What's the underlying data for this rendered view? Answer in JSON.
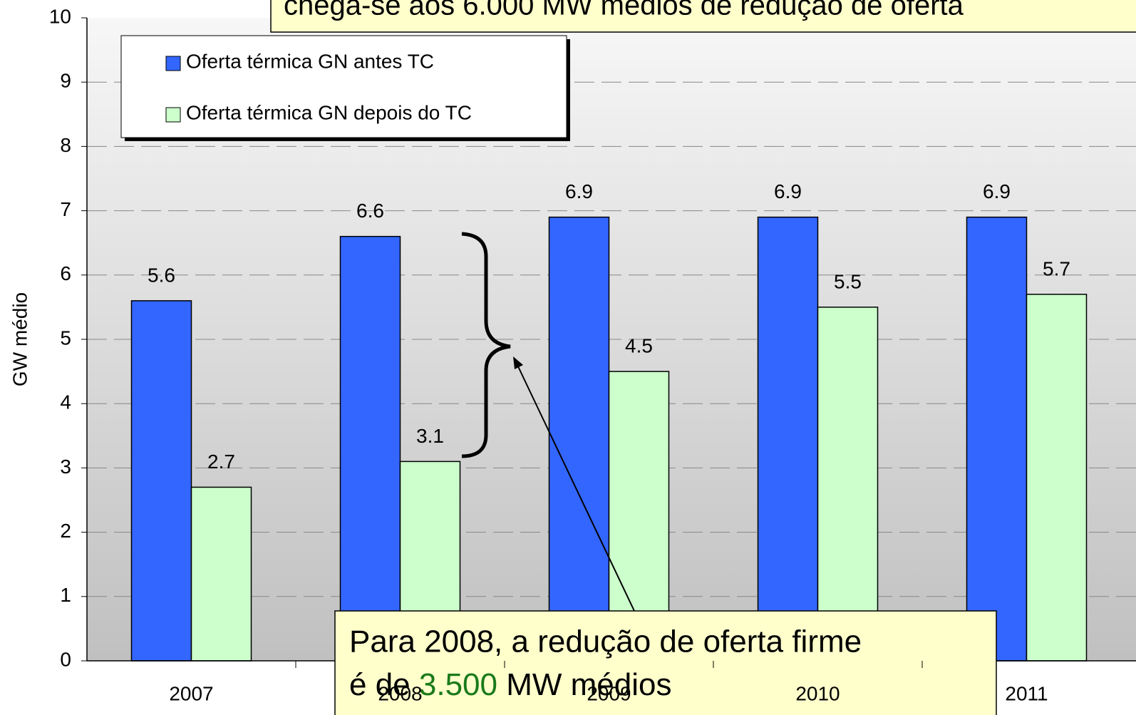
{
  "chart_data": {
    "type": "bar",
    "y_axis_label": "GW médio",
    "categories": [
      "2007",
      "2008",
      "2009",
      "2010",
      "2011"
    ],
    "series": [
      {
        "name": "Oferta térmica GN antes TC",
        "color": "#3366ff",
        "values": [
          5.6,
          6.6,
          6.9,
          6.9,
          6.9
        ]
      },
      {
        "name": "Oferta térmica GN depois do TC",
        "color": "#ccffcc",
        "values": [
          2.7,
          3.1,
          4.5,
          5.5,
          5.7
        ]
      }
    ],
    "ylim": [
      0,
      10
    ],
    "yticks": [
      0,
      1,
      2,
      3,
      4,
      5,
      6,
      7,
      8,
      9,
      10
    ],
    "grid": true,
    "annotations": {
      "top": "chega-se aos 6.000 MW médios de redução de oferta",
      "bottom_line1": "Para 2008, a redução de oferta firme",
      "bottom_line2_start": "é de ",
      "bottom_line2_highlight": "3.500",
      "bottom_line2_end": " MW médios"
    }
  }
}
